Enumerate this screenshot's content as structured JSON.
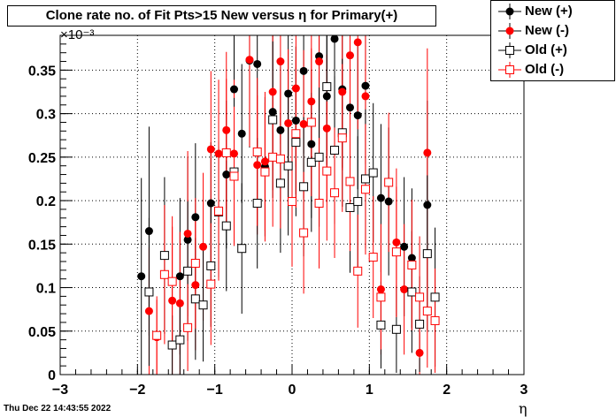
{
  "chart_data": {
    "type": "scatter",
    "title": "Clone rate no. of Fit Pts>15 New versus  η for Primary(+)",
    "xlabel": "η",
    "ylabel": "",
    "y_exponent_label": "×10⁻³",
    "xlim": [
      -3,
      3
    ],
    "ylim": [
      0,
      0.00039
    ],
    "x_ticks": [
      "−3",
      "−2",
      "−1",
      "0",
      "1",
      "2",
      "3"
    ],
    "y_ticks": [
      "0",
      "0.05",
      "0.1",
      "0.15",
      "0.2",
      "0.25",
      "0.3",
      "0.35"
    ],
    "grid": true,
    "legend_position": "top-right",
    "series": [
      {
        "name": "New (+)",
        "marker": "filled-circle",
        "color": "#000000",
        "points": [
          {
            "x": -1.95,
            "y": 0.000113,
            "err": 0.000113
          },
          {
            "x": -1.85,
            "y": 0.000165,
            "err": 0.00012
          },
          {
            "x": -1.45,
            "y": 0.000113,
            "err": 9e-05
          },
          {
            "x": -1.35,
            "y": 0.000155,
            "err": 9.5e-05
          },
          {
            "x": -1.25,
            "y": 0.000181,
            "err": 8.5e-05
          },
          {
            "x": -1.05,
            "y": 0.000197,
            "err": 7e-05
          },
          {
            "x": -0.85,
            "y": 0.00023,
            "err": 8.5e-05
          },
          {
            "x": -0.75,
            "y": 0.000328,
            "err": 9.5e-05
          },
          {
            "x": -0.65,
            "y": 0.000277,
            "err": 8e-05
          },
          {
            "x": -0.55,
            "y": 0.000361,
            "err": 0.0001
          },
          {
            "x": -0.45,
            "y": 0.000357,
            "err": 9.5e-05
          },
          {
            "x": -0.35,
            "y": 0.000239,
            "err": 8e-05
          },
          {
            "x": -0.25,
            "y": 0.000302,
            "err": 9e-05
          },
          {
            "x": -0.15,
            "y": 0.000281,
            "err": 8e-05
          },
          {
            "x": -0.05,
            "y": 0.000323,
            "err": 8.5e-05
          },
          {
            "x": 0.05,
            "y": 0.000292,
            "err": 8.5e-05
          },
          {
            "x": 0.15,
            "y": 0.000349,
            "err": 9.5e-05
          },
          {
            "x": 0.25,
            "y": 0.000265,
            "err": 8.5e-05
          },
          {
            "x": 0.35,
            "y": 0.000366,
            "err": 9.5e-05
          },
          {
            "x": 0.45,
            "y": 0.00032,
            "err": 9e-05
          },
          {
            "x": 0.55,
            "y": 0.000386,
            "err": 0.000105
          },
          {
            "x": 0.65,
            "y": 0.000328,
            "err": 9e-05
          },
          {
            "x": 0.75,
            "y": 0.000307,
            "err": 9e-05
          },
          {
            "x": 0.85,
            "y": 0.000298,
            "err": 8.5e-05
          },
          {
            "x": 0.95,
            "y": 0.000332,
            "err": 9e-05
          },
          {
            "x": 1.15,
            "y": 0.000203,
            "err": 8.5e-05
          },
          {
            "x": 1.25,
            "y": 0.000199,
            "err": 8.5e-05
          },
          {
            "x": 1.45,
            "y": 0.000147,
            "err": 8e-05
          },
          {
            "x": 1.55,
            "y": 0.000134,
            "err": 8e-05
          },
          {
            "x": 1.75,
            "y": 0.000195,
            "err": 0.00012
          }
        ]
      },
      {
        "name": "New (-)",
        "marker": "filled-circle",
        "color": "#ff0000",
        "points": [
          {
            "x": -1.85,
            "y": 7.3e-05,
            "err": 7.3e-05
          },
          {
            "x": -1.75,
            "y": 4.3e-05,
            "err": 4.3e-05
          },
          {
            "x": -1.55,
            "y": 8.5e-05,
            "err": 8.5e-05
          },
          {
            "x": -1.45,
            "y": 8.2e-05,
            "err": 8.2e-05
          },
          {
            "x": -1.35,
            "y": 0.000162,
            "err": 9.5e-05
          },
          {
            "x": -1.25,
            "y": 0.000103,
            "err": 7.5e-05
          },
          {
            "x": -1.15,
            "y": 0.000147,
            "err": 8.5e-05
          },
          {
            "x": -1.05,
            "y": 0.000259,
            "err": 9e-05
          },
          {
            "x": -0.95,
            "y": 0.000254,
            "err": 8.5e-05
          },
          {
            "x": -0.85,
            "y": 0.000281,
            "err": 9e-05
          },
          {
            "x": -0.75,
            "y": 0.000254,
            "err": 8.5e-05
          },
          {
            "x": -0.55,
            "y": 0.000362,
            "err": 0.0001
          },
          {
            "x": -0.45,
            "y": 0.000241,
            "err": 8e-05
          },
          {
            "x": -0.35,
            "y": 0.000245,
            "err": 8e-05
          },
          {
            "x": -0.25,
            "y": 0.000325,
            "err": 9e-05
          },
          {
            "x": -0.15,
            "y": 0.00036,
            "err": 9.5e-05
          },
          {
            "x": 0.05,
            "y": 0.000329,
            "err": 9e-05
          },
          {
            "x": -0.05,
            "y": 0.000289,
            "err": 8.5e-05
          },
          {
            "x": 0.15,
            "y": 0.000288,
            "err": 8.5e-05
          },
          {
            "x": 0.25,
            "y": 0.000314,
            "err": 9e-05
          },
          {
            "x": 0.35,
            "y": 0.00036,
            "err": 9.5e-05
          },
          {
            "x": 0.45,
            "y": 0.000283,
            "err": 8.5e-05
          },
          {
            "x": 0.65,
            "y": 0.000325,
            "err": 9e-05
          },
          {
            "x": 0.75,
            "y": 0.000367,
            "err": 0.0001
          },
          {
            "x": 0.85,
            "y": 0.000382,
            "err": 0.0001
          },
          {
            "x": 0.95,
            "y": 0.00032,
            "err": 9e-05
          },
          {
            "x": 1.15,
            "y": 9.8e-05,
            "err": 7.5e-05
          },
          {
            "x": 1.35,
            "y": 0.000152,
            "err": 8.5e-05
          },
          {
            "x": 1.45,
            "y": 9.8e-05,
            "err": 7.5e-05
          },
          {
            "x": 1.65,
            "y": 2.5e-05,
            "err": 2.5e-05
          },
          {
            "x": 1.75,
            "y": 0.000255,
            "err": 0.00012
          }
        ]
      },
      {
        "name": "Old (+)",
        "marker": "open-square",
        "color": "#000000",
        "points": [
          {
            "x": -1.85,
            "y": 9.5e-05,
            "err": 8.5e-05
          },
          {
            "x": -1.65,
            "y": 0.000137,
            "err": 9e-05
          },
          {
            "x": -1.55,
            "y": 3.4e-05,
            "err": 3.4e-05
          },
          {
            "x": -1.45,
            "y": 4e-05,
            "err": 4e-05
          },
          {
            "x": -1.35,
            "y": 0.000119,
            "err": 8e-05
          },
          {
            "x": -1.25,
            "y": 8.7e-05,
            "err": 7e-05
          },
          {
            "x": -1.15,
            "y": 8e-05,
            "err": 6.5e-05
          },
          {
            "x": -1.05,
            "y": 0.000125,
            "err": 7e-05
          },
          {
            "x": -0.95,
            "y": 0.000187,
            "err": 7.5e-05
          },
          {
            "x": -0.85,
            "y": 0.000171,
            "err": 7.5e-05
          },
          {
            "x": -0.75,
            "y": 0.000233,
            "err": 8.5e-05
          },
          {
            "x": -0.65,
            "y": 0.000145,
            "err": 7.5e-05
          },
          {
            "x": -0.45,
            "y": 0.000197,
            "err": 7.5e-05
          },
          {
            "x": -0.25,
            "y": 0.000293,
            "err": 9e-05
          },
          {
            "x": -0.15,
            "y": 0.00022,
            "err": 8e-05
          },
          {
            "x": -0.05,
            "y": 0.00024,
            "err": 8e-05
          },
          {
            "x": 0.05,
            "y": 0.000267,
            "err": 8.5e-05
          },
          {
            "x": 0.15,
            "y": 0.000216,
            "err": 8e-05
          },
          {
            "x": 0.25,
            "y": 0.000244,
            "err": 8e-05
          },
          {
            "x": 0.35,
            "y": 0.00025,
            "err": 8e-05
          },
          {
            "x": 0.45,
            "y": 0.000331,
            "err": 9e-05
          },
          {
            "x": 0.55,
            "y": 0.000258,
            "err": 8.5e-05
          },
          {
            "x": 0.65,
            "y": 0.000278,
            "err": 8.5e-05
          },
          {
            "x": 0.75,
            "y": 0.000192,
            "err": 7.5e-05
          },
          {
            "x": 0.85,
            "y": 0.000199,
            "err": 7.5e-05
          },
          {
            "x": 0.95,
            "y": 0.000225,
            "err": 8e-05
          },
          {
            "x": 1.05,
            "y": 0.000232,
            "err": 8e-05
          },
          {
            "x": 1.15,
            "y": 5.7e-05,
            "err": 5e-05
          },
          {
            "x": 1.35,
            "y": 5.2e-05,
            "err": 5e-05
          },
          {
            "x": 1.55,
            "y": 9.5e-05,
            "err": 7e-05
          },
          {
            "x": 1.65,
            "y": 5.8e-05,
            "err": 5.5e-05
          },
          {
            "x": 1.75,
            "y": 0.000139,
            "err": 9e-05
          },
          {
            "x": 1.85,
            "y": 8.9e-05,
            "err": 8e-05
          }
        ]
      },
      {
        "name": "Old (-)",
        "marker": "open-square",
        "color": "#ff0000",
        "points": [
          {
            "x": -1.75,
            "y": 4.5e-05,
            "err": 4.5e-05
          },
          {
            "x": -1.65,
            "y": 0.000115,
            "err": 8e-05
          },
          {
            "x": -1.55,
            "y": 0.000107,
            "err": 7.5e-05
          },
          {
            "x": -1.35,
            "y": 5.4e-05,
            "err": 5e-05
          },
          {
            "x": -1.25,
            "y": 0.000128,
            "err": 7.5e-05
          },
          {
            "x": -1.05,
            "y": 0.000104,
            "err": 7e-05
          },
          {
            "x": -0.95,
            "y": 0.000188,
            "err": 8e-05
          },
          {
            "x": -0.85,
            "y": 0.000255,
            "err": 8.5e-05
          },
          {
            "x": -0.75,
            "y": 0.000228,
            "err": 8e-05
          },
          {
            "x": -0.45,
            "y": 0.000256,
            "err": 8.5e-05
          },
          {
            "x": -0.35,
            "y": 0.000233,
            "err": 8e-05
          },
          {
            "x": -0.25,
            "y": 0.00025,
            "err": 8e-05
          },
          {
            "x": -0.15,
            "y": 0.000248,
            "err": 8e-05
          },
          {
            "x": 0.0,
            "y": 0.000199,
            "err": 7.5e-05
          },
          {
            "x": 0.05,
            "y": 0.000277,
            "err": 8.5e-05
          },
          {
            "x": 0.15,
            "y": 0.000163,
            "err": 7e-05
          },
          {
            "x": 0.25,
            "y": 0.00029,
            "err": 8.5e-05
          },
          {
            "x": 0.35,
            "y": 0.000197,
            "err": 7.5e-05
          },
          {
            "x": 0.45,
            "y": 0.000234,
            "err": 8e-05
          },
          {
            "x": 0.55,
            "y": 0.000209,
            "err": 7.5e-05
          },
          {
            "x": 0.65,
            "y": 0.000272,
            "err": 8.5e-05
          },
          {
            "x": 0.75,
            "y": 0.000222,
            "err": 8e-05
          },
          {
            "x": 0.85,
            "y": 0.000119,
            "err": 6.5e-05
          },
          {
            "x": 0.95,
            "y": 0.000213,
            "err": 7.5e-05
          },
          {
            "x": 1.05,
            "y": 0.000135,
            "err": 7e-05
          },
          {
            "x": 1.15,
            "y": 8.9e-05,
            "err": 6e-05
          },
          {
            "x": 1.25,
            "y": 0.000221,
            "err": 8e-05
          },
          {
            "x": 1.35,
            "y": 0.000141,
            "err": 7.5e-05
          },
          {
            "x": 1.55,
            "y": 0.000126,
            "err": 7.5e-05
          },
          {
            "x": 1.65,
            "y": 8.9e-05,
            "err": 7e-05
          },
          {
            "x": 1.85,
            "y": 6.2e-05,
            "err": 6e-05
          },
          {
            "x": 1.75,
            "y": 7.3e-05,
            "err": 6.5e-05
          }
        ]
      }
    ]
  },
  "timestamp": "Thu Dec 22 14:43:55 2022"
}
